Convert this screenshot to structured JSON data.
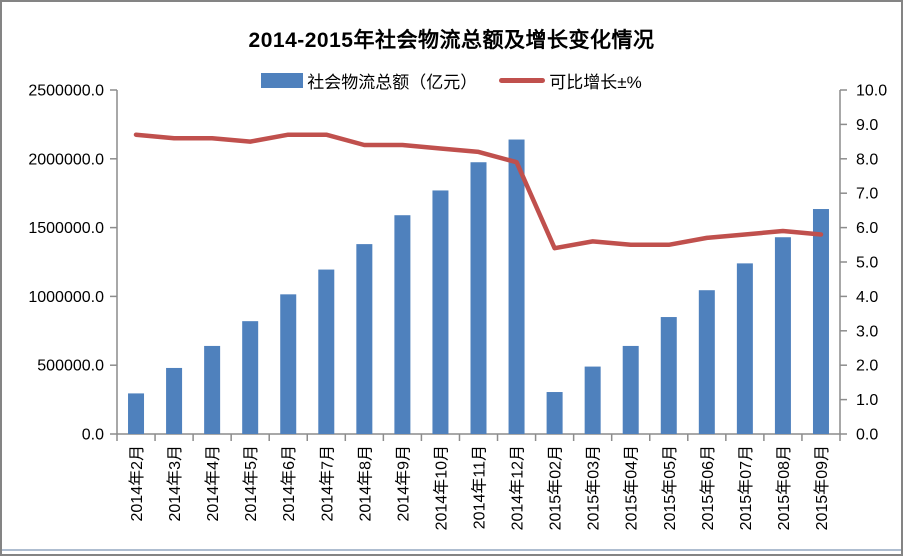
{
  "window": {
    "background": "#ffffff",
    "border_color": "#848484",
    "bottom_accent_color": "#aebdd0"
  },
  "chart_data": {
    "type": "bar",
    "combo": "bar+line",
    "title": "2014-2015年社会物流总额及增长变化情况",
    "legend_position": "top",
    "grid": false,
    "axis_color": "#8c8c8c",
    "text_color": "#000000",
    "categories": [
      "2014年2月",
      "2014年3月",
      "2014年4月",
      "2014年5月",
      "2014年6月",
      "2014年7月",
      "2014年8月",
      "2014年9月",
      "2014年10月",
      "2014年11月",
      "2014年12月",
      "2015年02月",
      "2015年03月",
      "2015年04月",
      "2015年05月",
      "2015年06月",
      "2015年07月",
      "2015年08月",
      "2015年09月"
    ],
    "series": [
      {
        "name": "社会物流总额（亿元）",
        "type": "bar",
        "axis": "left",
        "color": "#4f81bd",
        "values": [
          295000,
          480000,
          640000,
          820000,
          1015000,
          1195000,
          1380000,
          1590000,
          1770000,
          1975000,
          2140000,
          305000,
          490000,
          640000,
          850000,
          1045000,
          1240000,
          1430000,
          1635000
        ]
      },
      {
        "name": "可比增长±%",
        "type": "line",
        "axis": "right",
        "color": "#c0504d",
        "values": [
          8.7,
          8.6,
          8.6,
          8.5,
          8.7,
          8.7,
          8.4,
          8.4,
          8.3,
          8.2,
          7.9,
          5.4,
          5.6,
          5.5,
          5.5,
          5.7,
          5.8,
          5.9,
          5.8
        ]
      }
    ],
    "left_axis": {
      "min": 0,
      "max": 2500000,
      "step": 500000,
      "ticks": [
        0,
        500000,
        1000000,
        1500000,
        2000000,
        2500000
      ],
      "tick_labels": [
        "0.0",
        "500000.0",
        "1000000.0",
        "1500000.0",
        "2000000.0",
        "2500000.0"
      ]
    },
    "right_axis": {
      "min": 0,
      "max": 10,
      "step": 1,
      "ticks": [
        0,
        1,
        2,
        3,
        4,
        5,
        6,
        7,
        8,
        9,
        10
      ],
      "tick_labels": [
        "0.0",
        "1.0",
        "2.0",
        "3.0",
        "4.0",
        "5.0",
        "6.0",
        "7.0",
        "8.0",
        "9.0",
        "10.0"
      ]
    }
  }
}
